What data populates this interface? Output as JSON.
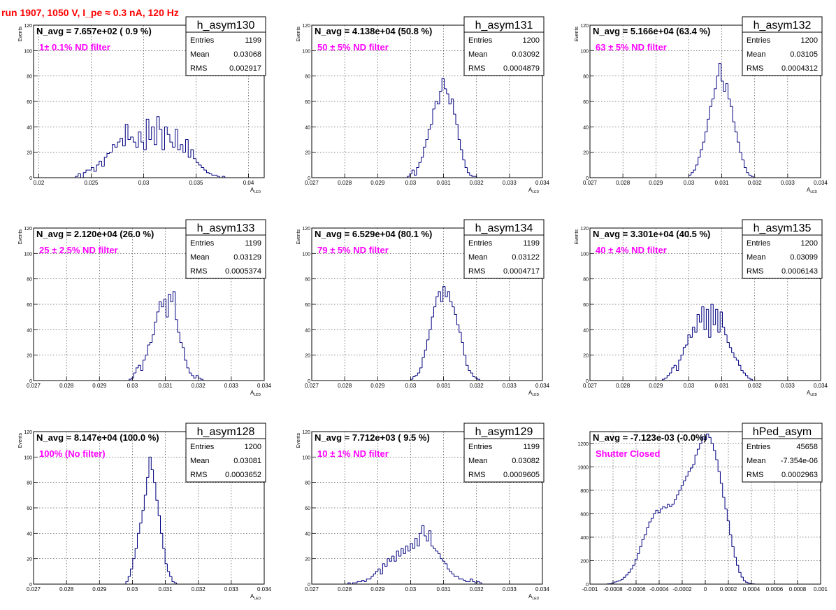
{
  "run_title": "run 1907,  1050 V, I_pe ≈ 0.3 nA, 120 Hz",
  "colors": {
    "title": "#ff0000",
    "annotation": "#ff00ff",
    "histogram": "#000080",
    "frame": "#000000",
    "grid": "#000000"
  },
  "chart_data": [
    {
      "type": "bar",
      "name": "h_asym130",
      "stats": {
        "entries_label": "Entries",
        "entries": "1199",
        "mean_label": "Mean",
        "mean": "0.03068",
        "rms_label": "RMS",
        "rms": "0.002917"
      },
      "navg_text": "N_avg = 7.657e+02 ( 0.9 %)",
      "annotation": "1± 0.1% ND filter",
      "xlabel": "A",
      "xlabel_sub": "LED",
      "ylabel": "Events",
      "xlim": [
        0.0195,
        0.0415
      ],
      "ylim": [
        0,
        120
      ],
      "xticks": [
        0.02,
        0.025,
        0.03,
        0.035,
        0.04
      ],
      "xtick_labels": [
        "0.02",
        "0.025",
        "0.03",
        "0.035",
        "0.04"
      ],
      "yticks": [
        0,
        20,
        40,
        60,
        80,
        100,
        120
      ],
      "ytick_labels": [
        "0",
        "20",
        "40",
        "60",
        "80",
        "100",
        "120"
      ],
      "grid": true,
      "x_start": 0.0235,
      "bin_width": 0.00025,
      "values": [
        1,
        3,
        0,
        4,
        6,
        6,
        8,
        5,
        10,
        13,
        9,
        16,
        19,
        20,
        26,
        24,
        28,
        31,
        25,
        42,
        30,
        32,
        28,
        24,
        36,
        28,
        22,
        46,
        30,
        40,
        26,
        48,
        38,
        22,
        40,
        34,
        28,
        24,
        38,
        22,
        26,
        20,
        30,
        16,
        22,
        15,
        12,
        10,
        8,
        6,
        4,
        3,
        2,
        2,
        1,
        0,
        1
      ]
    },
    {
      "type": "bar",
      "name": "h_asym131",
      "stats": {
        "entries_label": "Entries",
        "entries": "1200",
        "mean_label": "Mean",
        "mean": "0.03092",
        "rms_label": "RMS",
        "rms": "0.0004879"
      },
      "navg_text": "N_avg = 4.138e+04 (50.8 %)",
      "annotation": "50 ± 5% ND filter",
      "xlabel": "A",
      "xlabel_sub": "LED",
      "ylabel": "Events",
      "xlim": [
        0.027,
        0.034
      ],
      "ylim": [
        0,
        120
      ],
      "xticks": [
        0.027,
        0.028,
        0.029,
        0.03,
        0.031,
        0.032,
        0.033,
        0.034
      ],
      "xtick_labels": [
        "0.027",
        "0.028",
        "0.029",
        "0.03",
        "0.031",
        "0.032",
        "0.033",
        "0.034"
      ],
      "yticks": [
        0,
        20,
        40,
        60,
        80,
        100,
        120
      ],
      "ytick_labels": [
        "0",
        "20",
        "40",
        "60",
        "80",
        "100",
        "120"
      ],
      "grid": true,
      "x_start": 0.0299,
      "bin_width": 7e-05,
      "values": [
        1,
        3,
        6,
        2,
        8,
        12,
        16,
        24,
        30,
        38,
        42,
        54,
        60,
        58,
        68,
        78,
        70,
        66,
        58,
        62,
        50,
        42,
        30,
        22,
        14,
        8,
        4,
        2,
        1,
        1
      ]
    },
    {
      "type": "bar",
      "name": "h_asym132",
      "stats": {
        "entries_label": "Entries",
        "entries": "1200",
        "mean_label": "Mean",
        "mean": "0.03105",
        "rms_label": "RMS",
        "rms": "0.0004312"
      },
      "navg_text": "N_avg = 5.166e+04 (63.4 %)",
      "annotation": "63 ± 5% ND filter",
      "xlabel": "A",
      "xlabel_sub": "LED",
      "ylabel": "Events",
      "xlim": [
        0.027,
        0.034
      ],
      "ylim": [
        0,
        120
      ],
      "xticks": [
        0.027,
        0.028,
        0.029,
        0.03,
        0.031,
        0.032,
        0.033,
        0.034
      ],
      "xtick_labels": [
        "0.027",
        "0.028",
        "0.029",
        "0.03",
        "0.031",
        "0.032",
        "0.033",
        "0.034"
      ],
      "yticks": [
        0,
        20,
        40,
        60,
        80,
        100,
        120
      ],
      "ytick_labels": [
        "0",
        "20",
        "40",
        "60",
        "80",
        "100",
        "120"
      ],
      "grid": true,
      "x_start": 0.03,
      "bin_width": 7e-05,
      "values": [
        2,
        4,
        6,
        10,
        16,
        22,
        28,
        36,
        46,
        56,
        62,
        70,
        80,
        90,
        76,
        68,
        74,
        62,
        56,
        44,
        36,
        28,
        20,
        14,
        8,
        4,
        2,
        1
      ]
    },
    {
      "type": "bar",
      "name": "h_asym133",
      "stats": {
        "entries_label": "Entries",
        "entries": "1199",
        "mean_label": "Mean",
        "mean": "0.03129",
        "rms_label": "RMS",
        "rms": "0.0005374"
      },
      "navg_text": "N_avg = 2.120e+04 (26.0 %)",
      "annotation": "25 ± 2.5% ND filter",
      "xlabel": "A",
      "xlabel_sub": "LED",
      "ylabel": "Events",
      "xlim": [
        0.027,
        0.034
      ],
      "ylim": [
        0,
        120
      ],
      "xticks": [
        0.027,
        0.028,
        0.029,
        0.03,
        0.031,
        0.032,
        0.033,
        0.034
      ],
      "xtick_labels": [
        "0.027",
        "0.028",
        "0.029",
        "0.03",
        "0.031",
        "0.032",
        "0.033",
        "0.034"
      ],
      "yticks": [
        0,
        20,
        40,
        60,
        80,
        100,
        120
      ],
      "ytick_labels": [
        "0",
        "20",
        "40",
        "60",
        "80",
        "100",
        "120"
      ],
      "grid": true,
      "x_start": 0.0299,
      "bin_width": 7e-05,
      "values": [
        1,
        2,
        6,
        10,
        12,
        8,
        16,
        20,
        28,
        30,
        36,
        46,
        54,
        62,
        58,
        64,
        50,
        68,
        62,
        70,
        48,
        38,
        30,
        26,
        16,
        10,
        6,
        4,
        2,
        4,
        2,
        1
      ]
    },
    {
      "type": "bar",
      "name": "h_asym134",
      "stats": {
        "entries_label": "Entries",
        "entries": "1199",
        "mean_label": "Mean",
        "mean": "0.03122",
        "rms_label": "RMS",
        "rms": "0.0004717"
      },
      "navg_text": "N_avg = 6.529e+04 (80.1 %)",
      "annotation": "79 ± 5% ND filter",
      "xlabel": "A",
      "xlabel_sub": "LED",
      "ylabel": "Events",
      "xlim": [
        0.027,
        0.034
      ],
      "ylim": [
        0,
        120
      ],
      "xticks": [
        0.027,
        0.028,
        0.029,
        0.03,
        0.031,
        0.032,
        0.033,
        0.034
      ],
      "xtick_labels": [
        "0.027",
        "0.028",
        "0.029",
        "0.03",
        "0.031",
        "0.032",
        "0.033",
        "0.034"
      ],
      "yticks": [
        0,
        20,
        40,
        60,
        80,
        100,
        120
      ],
      "ytick_labels": [
        "0",
        "20",
        "40",
        "60",
        "80",
        "100",
        "120"
      ],
      "grid": true,
      "x_start": 0.03,
      "bin_width": 7e-05,
      "values": [
        1,
        3,
        4,
        6,
        10,
        18,
        24,
        32,
        40,
        50,
        58,
        66,
        70,
        62,
        74,
        66,
        70,
        62,
        58,
        52,
        44,
        38,
        30,
        20,
        12,
        8,
        6,
        3,
        2,
        1
      ]
    },
    {
      "type": "bar",
      "name": "h_asym135",
      "stats": {
        "entries_label": "Entries",
        "entries": "1200",
        "mean_label": "Mean",
        "mean": "0.03099",
        "rms_label": "RMS",
        "rms": "0.0006143"
      },
      "navg_text": "N_avg = 3.301e+04 (40.5 %)",
      "annotation": "40 ± 4% ND filter",
      "xlabel": "A",
      "xlabel_sub": "LED",
      "ylabel": "Events",
      "xlim": [
        0.027,
        0.034
      ],
      "ylim": [
        0,
        120
      ],
      "xticks": [
        0.027,
        0.028,
        0.029,
        0.03,
        0.031,
        0.032,
        0.033,
        0.034
      ],
      "xtick_labels": [
        "0.027",
        "0.028",
        "0.029",
        "0.03",
        "0.031",
        "0.032",
        "0.033",
        "0.034"
      ],
      "yticks": [
        0,
        20,
        40,
        60,
        80,
        100,
        120
      ],
      "ytick_labels": [
        "0",
        "20",
        "40",
        "60",
        "80",
        "100",
        "120"
      ],
      "grid": true,
      "x_start": 0.0292,
      "bin_width": 7e-05,
      "values": [
        1,
        2,
        4,
        6,
        10,
        12,
        8,
        16,
        20,
        26,
        28,
        36,
        34,
        42,
        38,
        52,
        46,
        58,
        40,
        56,
        34,
        60,
        44,
        56,
        38,
        54,
        42,
        36,
        30,
        26,
        22,
        18,
        16,
        12,
        8,
        6,
        4,
        2,
        1
      ]
    },
    {
      "type": "bar",
      "name": "h_asym128",
      "stats": {
        "entries_label": "Entries",
        "entries": "1200",
        "mean_label": "Mean",
        "mean": "0.03081",
        "rms_label": "RMS",
        "rms": "0.0003652"
      },
      "navg_text": "N_avg = 8.147e+04 (100.0 %)",
      "annotation": "100% (No filter)",
      "xlabel": "A",
      "xlabel_sub": "LED",
      "ylabel": "Events",
      "xlim": [
        0.027,
        0.034
      ],
      "ylim": [
        0,
        120
      ],
      "xticks": [
        0.027,
        0.028,
        0.029,
        0.03,
        0.031,
        0.032,
        0.033,
        0.034
      ],
      "xtick_labels": [
        "0.027",
        "0.028",
        "0.029",
        "0.03",
        "0.031",
        "0.032",
        "0.033",
        "0.034"
      ],
      "yticks": [
        0,
        20,
        40,
        60,
        80,
        100,
        120
      ],
      "ytick_labels": [
        "0",
        "20",
        "40",
        "60",
        "80",
        "100",
        "120"
      ],
      "grid": true,
      "x_start": 0.0298,
      "bin_width": 7e-05,
      "values": [
        2,
        6,
        12,
        20,
        28,
        40,
        48,
        58,
        70,
        84,
        100,
        90,
        80,
        66,
        54,
        40,
        28,
        16,
        10,
        6,
        2,
        1
      ]
    },
    {
      "type": "bar",
      "name": "h_asym129",
      "stats": {
        "entries_label": "Entries",
        "entries": "1199",
        "mean_label": "Mean",
        "mean": "0.03082",
        "rms_label": "RMS",
        "rms": "0.0009605"
      },
      "navg_text": "N_avg = 7.712e+03 ( 9.5 %)",
      "annotation": "10 ± 1% ND filter",
      "xlabel": "A",
      "xlabel_sub": "LED",
      "ylabel": "Events",
      "xlim": [
        0.027,
        0.034
      ],
      "ylim": [
        0,
        120
      ],
      "xticks": [
        0.027,
        0.028,
        0.029,
        0.03,
        0.031,
        0.032,
        0.033,
        0.034
      ],
      "xtick_labels": [
        "0.027",
        "0.028",
        "0.029",
        "0.03",
        "0.031",
        "0.032",
        "0.033",
        "0.034"
      ],
      "yticks": [
        0,
        20,
        40,
        60,
        80,
        100,
        120
      ],
      "ytick_labels": [
        "0",
        "20",
        "40",
        "60",
        "80",
        "100",
        "120"
      ],
      "grid": true,
      "x_start": 0.0281,
      "bin_width": 7e-05,
      "values": [
        1,
        0,
        1,
        1,
        2,
        2,
        3,
        2,
        4,
        4,
        6,
        8,
        10,
        12,
        8,
        16,
        14,
        20,
        18,
        22,
        18,
        26,
        22,
        28,
        24,
        30,
        26,
        32,
        28,
        36,
        30,
        40,
        46,
        38,
        34,
        42,
        30,
        28,
        26,
        24,
        20,
        18,
        16,
        12,
        10,
        8,
        6,
        6,
        4,
        4,
        3,
        2,
        2,
        4,
        2,
        1,
        2,
        1
      ]
    },
    {
      "type": "bar",
      "name": "hPed_asym",
      "stats": {
        "entries_label": "Entries",
        "entries": "45658",
        "mean_label": "Mean",
        "mean": "-7.354e-06",
        "rms_label": "RMS",
        "rms": "0.0002963"
      },
      "navg_text": "N_avg = -7.123e-03 (-0.0%)",
      "annotation": "Shutter Closed",
      "xlabel": "",
      "xlabel_sub": "",
      "ylabel": "",
      "xlim": [
        -0.001,
        0.001
      ],
      "ylim": [
        0,
        1300
      ],
      "xticks": [
        -0.001,
        -0.0008,
        -0.0006,
        -0.0004,
        -0.0002,
        0,
        0.0002,
        0.0004,
        0.0006,
        0.0008,
        0.001
      ],
      "xtick_labels": [
        "-0.001",
        "-0.0008",
        "-0.0006",
        "-0.0004",
        "-0.0002",
        "0",
        "0.0002",
        "0.0004",
        "0.0006",
        "0.0008",
        "0.001"
      ],
      "yticks": [
        0,
        200,
        400,
        600,
        800,
        1000,
        1200
      ],
      "ytick_labels": [
        "0",
        "200",
        "400",
        "600",
        "800",
        "1000",
        "1200"
      ],
      "grid": true,
      "x_start": -0.00085,
      "bin_width": 2e-05,
      "values": [
        2,
        4,
        10,
        18,
        24,
        30,
        40,
        58,
        78,
        100,
        130,
        160,
        210,
        260,
        320,
        380,
        420,
        480,
        530,
        560,
        600,
        630,
        610,
        640,
        660,
        650,
        680,
        660,
        680,
        720,
        760,
        800,
        840,
        880,
        920,
        960,
        990,
        1020,
        1100,
        1150,
        1200,
        1260,
        1230,
        1280,
        1250,
        1200,
        1140,
        1060,
        960,
        860,
        740,
        640,
        540,
        420,
        320,
        230,
        160,
        100,
        60,
        30,
        16,
        8,
        4,
        2
      ]
    }
  ]
}
